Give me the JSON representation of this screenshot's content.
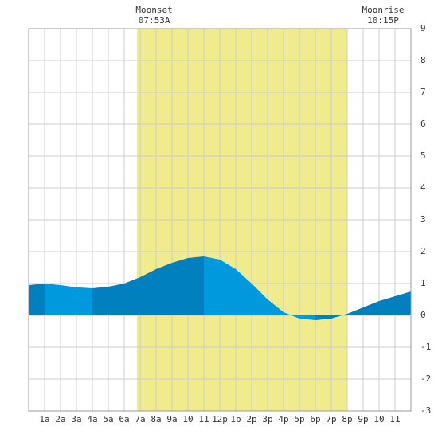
{
  "chart_data": {
    "type": "area",
    "x": [
      0,
      1,
      2,
      3,
      4,
      5,
      6,
      7,
      8,
      9,
      10,
      11,
      12,
      13,
      14,
      15,
      16,
      17,
      18,
      19,
      20,
      21,
      22,
      23,
      24
    ],
    "values": [
      0.95,
      1.0,
      0.95,
      0.88,
      0.85,
      0.9,
      1.0,
      1.2,
      1.45,
      1.65,
      1.8,
      1.85,
      1.75,
      1.45,
      1.0,
      0.5,
      0.1,
      -0.1,
      -0.15,
      -0.1,
      0.05,
      0.25,
      0.45,
      0.6,
      0.75
    ],
    "colors": [
      "#0080bf",
      "#0099dd"
    ],
    "xlim": [
      0,
      24
    ],
    "ylim": [
      -3,
      9
    ],
    "yticks": [
      -3,
      -2,
      -1,
      0,
      1,
      2,
      3,
      4,
      5,
      6,
      7,
      8,
      9
    ],
    "xticks": [
      {
        "value": 1,
        "label": "1a"
      },
      {
        "value": 2,
        "label": "2a"
      },
      {
        "value": 3,
        "label": "3a"
      },
      {
        "value": 4,
        "label": "4a"
      },
      {
        "value": 5,
        "label": "5a"
      },
      {
        "value": 6,
        "label": "6a"
      },
      {
        "value": 7,
        "label": "7a"
      },
      {
        "value": 8,
        "label": "8a"
      },
      {
        "value": 9,
        "label": "9a"
      },
      {
        "value": 10,
        "label": "10"
      },
      {
        "value": 11,
        "label": "11"
      },
      {
        "value": 12,
        "label": "12p"
      },
      {
        "value": 13,
        "label": "1p"
      },
      {
        "value": 14,
        "label": "2p"
      },
      {
        "value": 15,
        "label": "3p"
      },
      {
        "value": 16,
        "label": "4p"
      },
      {
        "value": 17,
        "label": "5p"
      },
      {
        "value": 18,
        "label": "6p"
      },
      {
        "value": 19,
        "label": "7p"
      },
      {
        "value": 20,
        "label": "8p"
      },
      {
        "value": 21,
        "label": "9p"
      },
      {
        "value": 22,
        "label": "10"
      },
      {
        "value": 23,
        "label": "11"
      }
    ],
    "daylight": {
      "range": [
        6.8,
        20
      ],
      "color": "#f0eb8c"
    },
    "annotations": [
      {
        "title": "Moonset",
        "time": "07:53A",
        "x": 7.88
      },
      {
        "title": "Moonrise",
        "time": "10:15P",
        "x": 22.25
      }
    ],
    "grid": true
  }
}
